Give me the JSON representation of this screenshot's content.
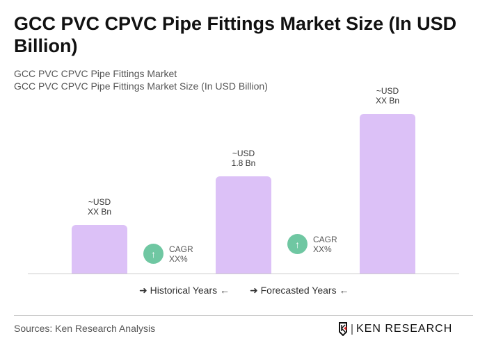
{
  "title": "GCC PVC CPVC Pipe Fittings Market Size (In USD Billion)",
  "subtitle1": "GCC PVC CPVC Pipe Fittings Market",
  "subtitle2": "GCC PVC CPVC Pipe Fittings Market Size (In USD Billion)",
  "chart_data": {
    "type": "bar",
    "categories": [
      "",
      "",
      ""
    ],
    "values": [
      0.9,
      1.8,
      2.96
    ],
    "data_labels": [
      [
        "~USD",
        "XX Bn"
      ],
      [
        "~USD",
        "1.8 Bn"
      ],
      [
        "~USD",
        "XX Bn"
      ]
    ],
    "bar_color": "#dcc1f7",
    "cagr": [
      {
        "label": "CAGR",
        "value": "XX%"
      },
      {
        "label": "CAGR",
        "value": "XX%"
      }
    ],
    "cagr_color": "#6fc7a2",
    "legend": [
      "Historical Years",
      "Forecasted Years"
    ]
  },
  "sources": "Sources: Ken Research Analysis",
  "logo": "KEN RESEARCH"
}
